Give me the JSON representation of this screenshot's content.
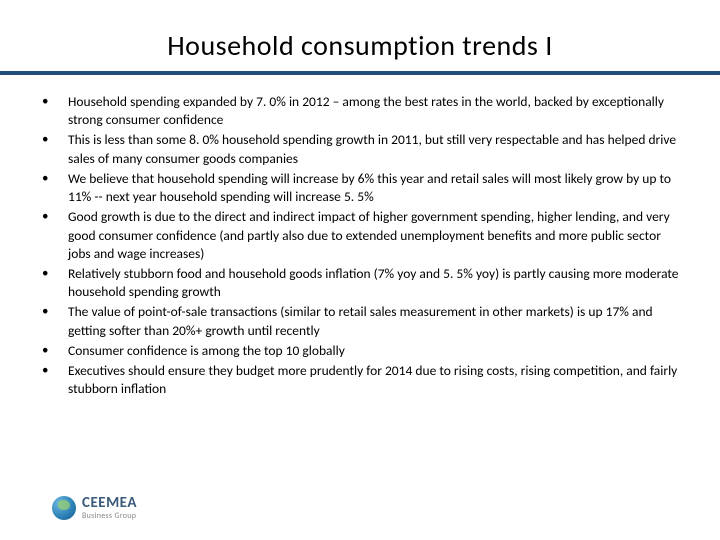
{
  "title": "Household consumption trends I",
  "title_fontsize": 28,
  "title_color": "#000000",
  "divider_color": "#1f4e79",
  "background_color": "#ffffff",
  "body_fontsize": 13.5,
  "body_fontfamily": "Calibri",
  "body_color": "#000000",
  "bullets": [
    "Household spending expanded by 7. 0% in 2012 – among the best rates in the world, backed by exceptionally strong consumer confidence",
    "This is less than some 8. 0% household spending growth in 2011, but still very respectable and has helped drive sales of many consumer goods companies",
    "We believe that household spending will increase by 6% this year and retail sales will most likely grow by up to 11% -- next year household spending will increase 5. 5%",
    "Good growth is due to the direct and indirect impact of higher government spending, higher lending, and very good consumer confidence (and partly also due to extended unemployment benefits and more public sector jobs and wage increases)",
    "Relatively stubborn food and household goods inflation (7% yoy and 5. 5% yoy) is partly causing more moderate household spending growth",
    "The value of point-of-sale transactions (similar to retail sales measurement in other markets) is up 17% and getting softer than 20%+ growth until recently",
    "Consumer confidence is among the top 10 globally",
    "Executives should ensure they budget more prudently for 2014 due to rising costs, rising competition, and fairly stubborn inflation"
  ],
  "logo": {
    "main": "CEEMEA",
    "sub": "Business Group",
    "main_color": "#3a5a7a",
    "sub_color": "#888888"
  }
}
